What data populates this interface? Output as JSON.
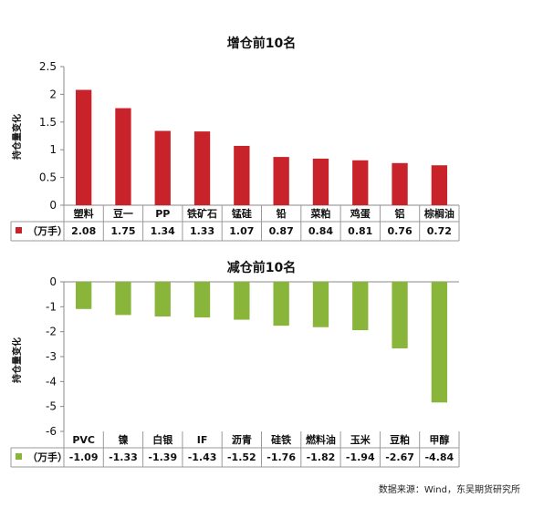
{
  "chart_data": [
    {
      "type": "bar",
      "title": "增仓前10名",
      "ylabel": "持仓量变化",
      "categories": [
        "塑料",
        "豆一",
        "PP",
        "铁矿石",
        "锰硅",
        "铅",
        "菜粕",
        "鸡蛋",
        "铝",
        "棕榈油"
      ],
      "series": [
        {
          "name": "（万手）",
          "color": "#c8232b",
          "values": [
            2.08,
            1.75,
            1.34,
            1.33,
            1.07,
            0.87,
            0.84,
            0.81,
            0.76,
            0.72
          ]
        }
      ],
      "value_labels": [
        "2.08",
        "1.75",
        "1.34",
        "1.33",
        "1.07",
        "0.87",
        "0.84",
        "0.81",
        "0.76",
        "0.72"
      ],
      "ylim": [
        0,
        2.5
      ],
      "yticks": [
        0,
        0.5,
        1,
        1.5,
        2,
        2.5
      ],
      "ytick_labels": [
        "0",
        "0.5",
        "1",
        "1.5",
        "2",
        "2.5"
      ],
      "legend": "bottom-left data table",
      "grid": false
    },
    {
      "type": "bar",
      "title": "减仓前10名",
      "ylabel": "持仓量变化",
      "categories": [
        "PVC",
        "镍",
        "白银",
        "IF",
        "沥青",
        "硅铁",
        "燃料油",
        "玉米",
        "豆粕",
        "甲醇"
      ],
      "series": [
        {
          "name": "（万手）",
          "color": "#8ab53b",
          "values": [
            -1.09,
            -1.33,
            -1.39,
            -1.43,
            -1.52,
            -1.76,
            -1.82,
            -1.94,
            -2.67,
            -4.84
          ]
        }
      ],
      "value_labels": [
        "-1.09",
        "-1.33",
        "-1.39",
        "-1.43",
        "-1.52",
        "-1.76",
        "-1.82",
        "-1.94",
        "-2.67",
        "-4.84"
      ],
      "ylim": [
        -6,
        0
      ],
      "yticks": [
        0,
        -1,
        -2,
        -3,
        -4,
        -5,
        -6
      ],
      "ytick_labels": [
        "0",
        "-1",
        "-2",
        "-3",
        "-4",
        "-5",
        "-6"
      ],
      "legend": "bottom-left data table",
      "grid": false
    }
  ],
  "source": "数据来源：Wind，东吴期货研究所"
}
